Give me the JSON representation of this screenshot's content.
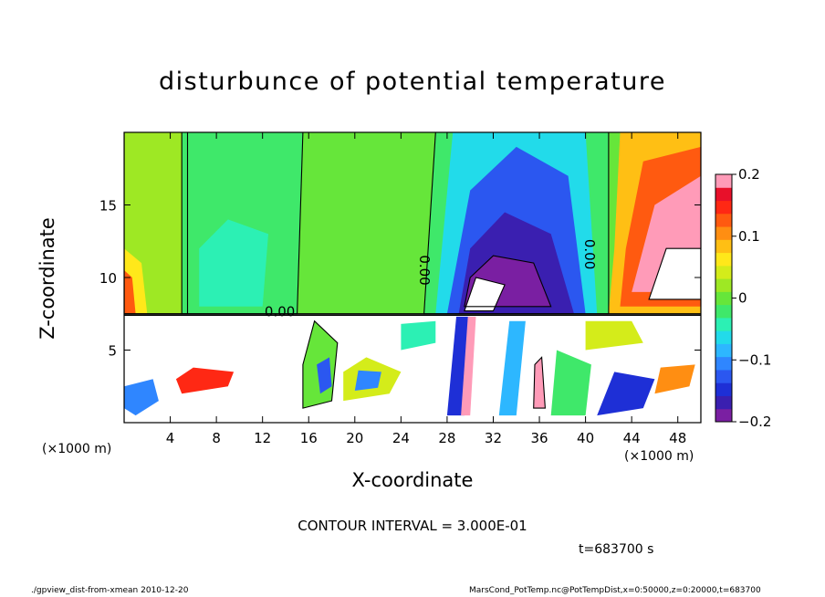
{
  "chart_data": {
    "type": "heatmap",
    "title": "disturbunce of potential temperature",
    "xlabel": "X-coordinate",
    "ylabel": "Z-coordinate",
    "x_unit": "(×1000 m)",
    "x_range": [
      0,
      50
    ],
    "y_range": [
      0,
      20
    ],
    "x_ticks": [
      4,
      8,
      12,
      16,
      20,
      24,
      28,
      32,
      36,
      40,
      44,
      48
    ],
    "y_ticks": [
      5,
      10,
      15
    ],
    "colorbar": {
      "range": [
        -0.2,
        0.2
      ],
      "ticks": [
        {
          "value": 0.2,
          "label": "0.2"
        },
        {
          "value": 0.1,
          "label": "0.1"
        },
        {
          "value": 0,
          "label": "0"
        },
        {
          "value": -0.1,
          "label": "−0.1"
        },
        {
          "value": -0.2,
          "label": "−0.2"
        }
      ],
      "colors": [
        "#7a1fa2",
        "#3a1fb0",
        "#1e2fd6",
        "#2b57f0",
        "#2f86ff",
        "#2db7ff",
        "#22dbea",
        "#2cf0b4",
        "#3fe86a",
        "#66e63a",
        "#9ee824",
        "#d4ec1a",
        "#ffe81a",
        "#ffbf14",
        "#ff8e12",
        "#ff5a10",
        "#ff2814",
        "#e8102a",
        "#ff9bb8"
      ]
    },
    "contour_labels": [
      {
        "x": 13.5,
        "z": 7.6,
        "text": "0.00",
        "rotate": 0
      },
      {
        "x": 26.0,
        "z": 10.5,
        "text": "0.00",
        "rotate": 90
      },
      {
        "x": 40.3,
        "z": 11.6,
        "text": "0.00",
        "rotate": 90
      }
    ],
    "field_regions": [
      {
        "level": 0.0,
        "points": [
          [
            0,
            7.5
          ],
          [
            50,
            7.5
          ],
          [
            50,
            20
          ],
          [
            0,
            20
          ]
        ]
      },
      {
        "level": 0.02,
        "points": [
          [
            0,
            7.5
          ],
          [
            5.5,
            7.5
          ],
          [
            5.5,
            20
          ],
          [
            0,
            20
          ]
        ]
      },
      {
        "level": -0.02,
        "points": [
          [
            5,
            7.5
          ],
          [
            15,
            7.5
          ],
          [
            15.5,
            20
          ],
          [
            5,
            20
          ]
        ]
      },
      {
        "level": -0.05,
        "points": [
          [
            6.5,
            8
          ],
          [
            12,
            8
          ],
          [
            12.5,
            13
          ],
          [
            9,
            14
          ],
          [
            6.5,
            12
          ]
        ]
      },
      {
        "level": -0.02,
        "points": [
          [
            26,
            7.5
          ],
          [
            42,
            7.5
          ],
          [
            42,
            20
          ],
          [
            27,
            20
          ]
        ]
      },
      {
        "level": -0.07,
        "points": [
          [
            27,
            7.5
          ],
          [
            41,
            7.5
          ],
          [
            40,
            20
          ],
          [
            28.5,
            20
          ]
        ]
      },
      {
        "level": -0.12,
        "points": [
          [
            28,
            7.5
          ],
          [
            40,
            7.5
          ],
          [
            38.5,
            17
          ],
          [
            34,
            19
          ],
          [
            30,
            16
          ]
        ]
      },
      {
        "level": -0.16,
        "points": [
          [
            29,
            7.5
          ],
          [
            39,
            7.5
          ],
          [
            37,
            13
          ],
          [
            33,
            14.5
          ],
          [
            30,
            12
          ]
        ]
      },
      {
        "level": -0.2,
        "points": [
          [
            29.5,
            8
          ],
          [
            37,
            8
          ],
          [
            35.5,
            11
          ],
          [
            32,
            11.5
          ],
          [
            30,
            10
          ]
        ]
      },
      {
        "level": 0.08,
        "points": [
          [
            42,
            7.5
          ],
          [
            50,
            7.5
          ],
          [
            50,
            20
          ],
          [
            43,
            20
          ],
          [
            42.5,
            12
          ]
        ]
      },
      {
        "level": 0.13,
        "points": [
          [
            43,
            8
          ],
          [
            50,
            8
          ],
          [
            50,
            19
          ],
          [
            45,
            18
          ],
          [
            43.5,
            12
          ]
        ]
      },
      {
        "level": 0.18,
        "points": [
          [
            44,
            9
          ],
          [
            50,
            9
          ],
          [
            50,
            17
          ],
          [
            46,
            15
          ]
        ]
      },
      {
        "level": 0.25,
        "points": [
          [
            45.5,
            8.5
          ],
          [
            50,
            8.5
          ],
          [
            50,
            12
          ],
          [
            47,
            12
          ]
        ]
      },
      {
        "level": 0.25,
        "points": [
          [
            29.5,
            7.7
          ],
          [
            32,
            7.7
          ],
          [
            33,
            9.5
          ],
          [
            30.5,
            10
          ]
        ]
      },
      {
        "level": 0.06,
        "points": [
          [
            0,
            7.5
          ],
          [
            2,
            7.5
          ],
          [
            1.5,
            11
          ],
          [
            0,
            12
          ]
        ]
      },
      {
        "level": 0.12,
        "points": [
          [
            0,
            7.5
          ],
          [
            1,
            7.5
          ],
          [
            0.7,
            10
          ],
          [
            0,
            10.5
          ]
        ]
      },
      {
        "level": 0.25,
        "points": [
          [
            0,
            0
          ],
          [
            50,
            0
          ],
          [
            50,
            7.5
          ],
          [
            0,
            7.5
          ]
        ]
      },
      {
        "level": -0.1,
        "points": [
          [
            0,
            2.5
          ],
          [
            2.5,
            3
          ],
          [
            3,
            1.5
          ],
          [
            1,
            0.5
          ],
          [
            0,
            1
          ]
        ]
      },
      {
        "level": 0.15,
        "points": [
          [
            5,
            2
          ],
          [
            9,
            2.5
          ],
          [
            9.5,
            3.5
          ],
          [
            6,
            3.8
          ],
          [
            4.5,
            3
          ]
        ]
      },
      {
        "level": 0.0,
        "points": [
          [
            15.5,
            1
          ],
          [
            18,
            1.5
          ],
          [
            18.5,
            5.5
          ],
          [
            16.5,
            7
          ],
          [
            15.5,
            4
          ]
        ]
      },
      {
        "level": -0.12,
        "points": [
          [
            17,
            2
          ],
          [
            18,
            2.5
          ],
          [
            17.8,
            4.5
          ],
          [
            16.7,
            4
          ]
        ]
      },
      {
        "level": 0.05,
        "points": [
          [
            19,
            1.5
          ],
          [
            23,
            2
          ],
          [
            24,
            3.5
          ],
          [
            21,
            4.5
          ],
          [
            19,
            3.5
          ]
        ]
      },
      {
        "level": -0.1,
        "points": [
          [
            20,
            2.2
          ],
          [
            22,
            2.4
          ],
          [
            22.3,
            3.5
          ],
          [
            20.3,
            3.6
          ]
        ]
      },
      {
        "level": -0.05,
        "points": [
          [
            24,
            5
          ],
          [
            27,
            5.5
          ],
          [
            27,
            7
          ],
          [
            24,
            6.8
          ]
        ]
      },
      {
        "level": -0.15,
        "points": [
          [
            28,
            0.5
          ],
          [
            29.5,
            0.5
          ],
          [
            30,
            7.3
          ],
          [
            28.8,
            7.3
          ]
        ]
      },
      {
        "level": 0.18,
        "points": [
          [
            29.2,
            0.5
          ],
          [
            30,
            0.5
          ],
          [
            30.5,
            7.3
          ],
          [
            29.8,
            7.3
          ]
        ]
      },
      {
        "level": -0.08,
        "points": [
          [
            32.5,
            0.5
          ],
          [
            34,
            0.5
          ],
          [
            34.8,
            7
          ],
          [
            33.4,
            7
          ]
        ]
      },
      {
        "level": 0.2,
        "points": [
          [
            35.5,
            1
          ],
          [
            36.5,
            1
          ],
          [
            36.2,
            4.5
          ],
          [
            35.6,
            4
          ]
        ]
      },
      {
        "level": -0.03,
        "points": [
          [
            37,
            0.5
          ],
          [
            40,
            0.5
          ],
          [
            40.5,
            4
          ],
          [
            37.5,
            5
          ]
        ]
      },
      {
        "level": -0.14,
        "points": [
          [
            41,
            0.5
          ],
          [
            45,
            1
          ],
          [
            46,
            3
          ],
          [
            42.5,
            3.5
          ]
        ]
      },
      {
        "level": 0.1,
        "points": [
          [
            46,
            2
          ],
          [
            49,
            2.5
          ],
          [
            49.5,
            4
          ],
          [
            46.5,
            3.8
          ]
        ]
      },
      {
        "level": 0.04,
        "points": [
          [
            40,
            5
          ],
          [
            45,
            5.5
          ],
          [
            44,
            7
          ],
          [
            40,
            7
          ]
        ]
      }
    ]
  },
  "labels": {
    "title": "disturbunce of potential temperature",
    "xlabel": "X-coordinate",
    "ylabel": "Z-coordinate",
    "xunit_left": "(×1000 m)",
    "xunit_right": "(×1000 m)",
    "contour_interval": "CONTOUR INTERVAL = 3.000E-01",
    "time": "t=683700 s",
    "footer_left": "./gpview_dist-from-xmean  2010-12-20",
    "footer_right": "MarsCond_PotTemp.nc@PotTempDist,x=0:50000,z=0:20000,t=683700"
  }
}
